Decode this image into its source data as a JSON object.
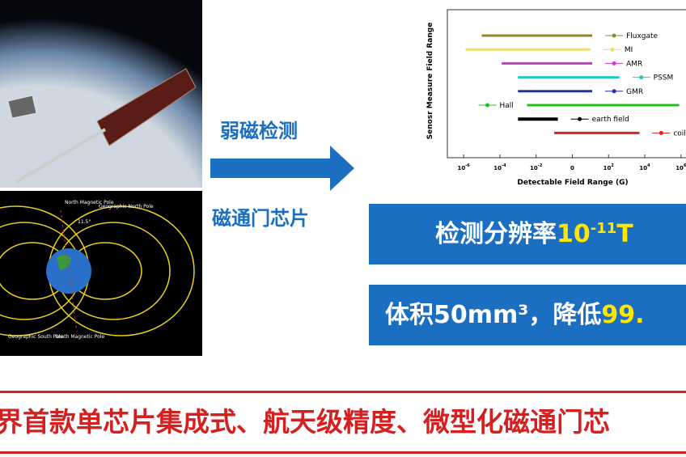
{
  "arrow": {
    "top": "弱磁检测",
    "bottom": "磁通门芯片"
  },
  "diagram": {
    "north_magnetic": "North Magnetic Pole",
    "north_geo": "Geographic North Pole",
    "angle": "11.5°",
    "south_geo": "Geographic South Pole",
    "south_magnetic": "South Magnetic Pole"
  },
  "range_chart": {
    "y_label": "Senosr Measure Field Range",
    "x_label": "Detectable Field Range (G)",
    "xlim": [
      -6.9,
      6.5
    ],
    "xticks": [
      {
        "value": -6,
        "label": "10",
        "exp": "-6"
      },
      {
        "value": -4,
        "label": "10",
        "exp": "-4"
      },
      {
        "value": -2,
        "label": "10",
        "exp": "-2"
      },
      0,
      {
        "value": 2,
        "label": "10",
        "exp": "2"
      },
      {
        "value": 4,
        "label": "10",
        "exp": "4"
      },
      {
        "value": 6,
        "label": "10",
        "exp": "6"
      }
    ],
    "ranges": [
      {
        "name": "Fluxgate",
        "color": "#8a8a2a",
        "start": -5,
        "end": 1.1
      },
      {
        "name": "MI",
        "color": "#e8e070",
        "start": -5.9,
        "end": 1.0
      },
      {
        "name": "AMR",
        "color": "#c040c0",
        "start": -3.9,
        "end": 1.1
      },
      {
        "name": "PSSM",
        "color": "#20c8c8",
        "start": -3,
        "end": 2.6
      },
      {
        "name": "GMR",
        "color": "#2030a8",
        "start": -3,
        "end": 1.1
      },
      {
        "name": "Hall",
        "color": "#20c020",
        "start": -2.5,
        "end": 5.9
      },
      {
        "name": "earth field",
        "color": "#000000",
        "start": -3,
        "end": -0.8
      },
      {
        "name": "coil",
        "color": "#e02020",
        "start": -1,
        "end": 3.7
      }
    ]
  },
  "box1": {
    "text": "检测分辨率",
    "value": "10",
    "exp": "-11",
    "unit": "T"
  },
  "box2": {
    "text": "体积50mm³，降低",
    "value": "99."
  },
  "banner": {
    "text": "界首款单芯片集成式、航天级精度、微型化磁通门芯"
  }
}
